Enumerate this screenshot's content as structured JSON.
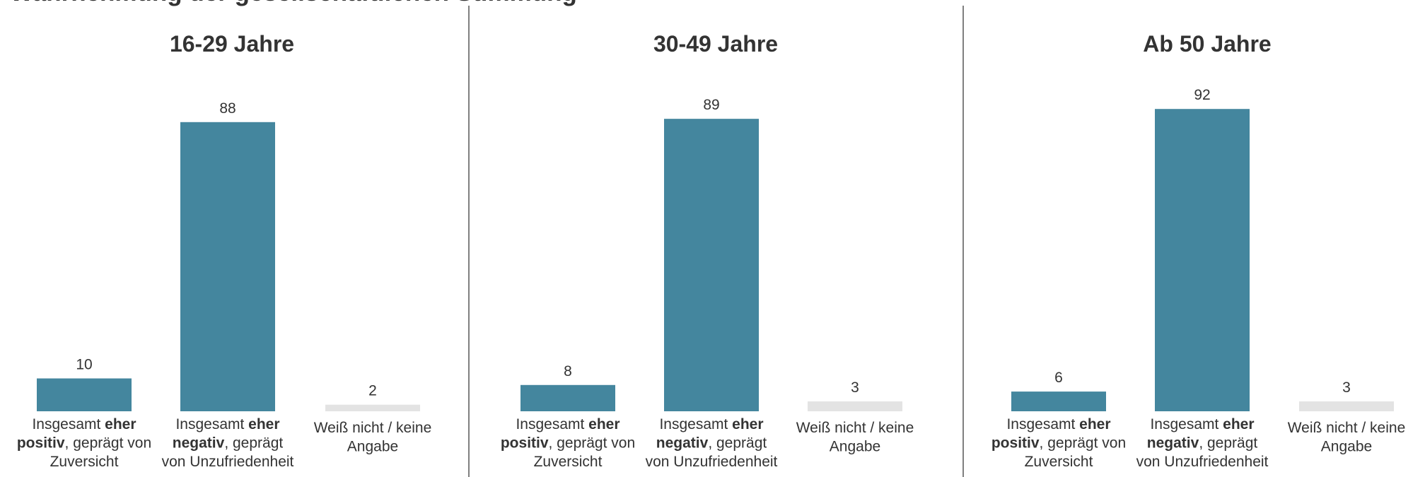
{
  "title": "Wahrnehmung der gesellschaftlichen Stimmung",
  "colors": {
    "bar": "#44869e",
    "bar_minor": "#e3e3e3",
    "divider": "#7f7f7f",
    "text": "#333333"
  },
  "chart_data": [
    {
      "type": "bar",
      "title": "16-29 Jahre",
      "categories": [
        "Insgesamt eher positiv, geprägt von Zuversicht",
        "Insgesamt eher negativ, geprägt von Unzufriedenheit",
        "Weiß nicht / keine Angabe"
      ],
      "values": [
        10,
        88,
        2
      ],
      "ylim": [
        0,
        100
      ],
      "grid": false
    },
    {
      "type": "bar",
      "title": "30-49 Jahre",
      "categories": [
        "Insgesamt eher positiv, geprägt von Zuversicht",
        "Insgesamt eher negativ, geprägt von Unzufriedenheit",
        "Weiß nicht / keine Angabe"
      ],
      "values": [
        8,
        89,
        3
      ],
      "ylim": [
        0,
        100
      ],
      "grid": false
    },
    {
      "type": "bar",
      "title": "Ab 50 Jahre",
      "categories": [
        "Insgesamt eher positiv, geprägt von Zuversicht",
        "Insgesamt eher negativ, geprägt von Unzufriedenheit",
        "Weiß nicht / keine Angabe"
      ],
      "values": [
        6,
        92,
        3
      ],
      "ylim": [
        0,
        100
      ],
      "grid": false
    }
  ],
  "category_label_lines": [
    [
      [
        {
          "t": "Insgesamt ",
          "b": false
        },
        {
          "t": "eher",
          "b": true
        }
      ],
      [
        {
          "t": "positiv",
          "b": true
        },
        {
          "t": ", geprägt von",
          "b": false
        }
      ],
      [
        {
          "t": "Zuversicht",
          "b": false
        }
      ]
    ],
    [
      [
        {
          "t": "Insgesamt ",
          "b": false
        },
        {
          "t": "eher",
          "b": true
        }
      ],
      [
        {
          "t": "negativ",
          "b": true
        },
        {
          "t": ", geprägt",
          "b": false
        }
      ],
      [
        {
          "t": "von Unzufriedenheit",
          "b": false
        }
      ]
    ],
    [
      [
        {
          "t": "Weiß nicht / keine",
          "b": false
        }
      ],
      [
        {
          "t": "Angabe",
          "b": false
        }
      ]
    ]
  ]
}
